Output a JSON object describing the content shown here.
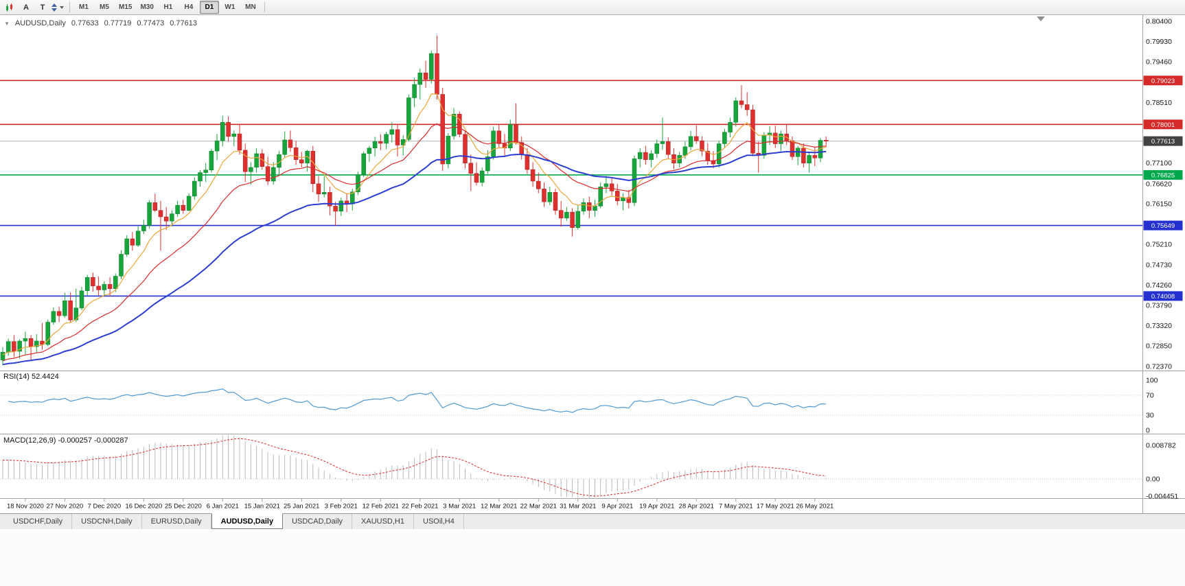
{
  "toolbar": {
    "a_label": "A",
    "t_label": "T",
    "timeframes": [
      "M1",
      "M5",
      "M15",
      "M30",
      "H1",
      "H4",
      "D1",
      "W1",
      "MN"
    ],
    "active_timeframe": "D1"
  },
  "chart": {
    "info_line": {
      "symbol_period": "AUDUSD,Daily",
      "open": "0.77633",
      "high": "0.77719",
      "low": "0.77473",
      "close": "0.77613"
    },
    "price_axis_ticks": [
      "0.80400",
      "0.79930",
      "0.79460",
      "0.78980",
      "0.78510",
      "0.78040",
      "0.77100",
      "0.76620",
      "0.76150",
      "0.75670",
      "0.75210",
      "0.74730",
      "0.74260",
      "0.73790",
      "0.73320",
      "0.72850",
      "0.72370"
    ],
    "current_price": {
      "value": 0.77613,
      "label": "0.77613",
      "line_color": "#b4b4b4",
      "box_color": "#424242"
    },
    "levels": [
      {
        "label": "0.79023",
        "value": 0.79023,
        "color": "#d42a2a"
      },
      {
        "label": "0.78001",
        "value": 0.78001,
        "color": "#d42a2a"
      },
      {
        "label": "0.76825",
        "value": 0.76825,
        "color": "#00a84d"
      },
      {
        "label": "0.75649",
        "value": 0.75649,
        "color": "#2430cf"
      },
      {
        "label": "0.74008",
        "value": 0.74008,
        "color": "#2430cf"
      }
    ],
    "colors": {
      "up": "#17a53b",
      "up_stroke": "#0c7c2b",
      "down": "#df3030",
      "down_stroke": "#a32020",
      "bg": "#ffffff",
      "axis_text": "#141414"
    }
  },
  "chart_data": {
    "type": "candlestick",
    "title": "AUDUSD Daily",
    "ylim": [
      0.7237,
      0.804
    ],
    "x_labels": [
      "18 Nov 2020",
      "27 Nov 2020",
      "7 Dec 2020",
      "16 Dec 2020",
      "25 Dec 2020",
      "6 Jan 2021",
      "15 Jan 2021",
      "25 Jan 2021",
      "3 Feb 2021",
      "12 Feb 2021",
      "22 Feb 2021",
      "3 Mar 2021",
      "12 Mar 2021",
      "22 Mar 2021",
      "31 Mar 2021",
      "9 Apr 2021",
      "19 Apr 2021",
      "28 Apr 2021",
      "7 May 2021",
      "17 May 2021",
      "26 May 2021"
    ],
    "label_every": 7,
    "label_start_index": 4,
    "candles": [
      [
        0.7252,
        0.7282,
        0.724,
        0.727
      ],
      [
        0.727,
        0.7302,
        0.7262,
        0.7295
      ],
      [
        0.7295,
        0.731,
        0.7258,
        0.7272
      ],
      [
        0.7272,
        0.73,
        0.7255,
        0.7296
      ],
      [
        0.7296,
        0.7318,
        0.7265,
        0.7302
      ],
      [
        0.7302,
        0.731,
        0.7252,
        0.7283
      ],
      [
        0.7283,
        0.7312,
        0.7268,
        0.7296
      ],
      [
        0.7296,
        0.7338,
        0.7276,
        0.7288
      ],
      [
        0.7288,
        0.7346,
        0.7284,
        0.734
      ],
      [
        0.734,
        0.7374,
        0.7334,
        0.7365
      ],
      [
        0.7365,
        0.7376,
        0.734,
        0.7355
      ],
      [
        0.7355,
        0.7408,
        0.735,
        0.739
      ],
      [
        0.739,
        0.7409,
        0.7339,
        0.7345
      ],
      [
        0.7345,
        0.7418,
        0.734,
        0.7373
      ],
      [
        0.7373,
        0.7422,
        0.7368,
        0.7413
      ],
      [
        0.7413,
        0.745,
        0.7402,
        0.7444
      ],
      [
        0.7444,
        0.7455,
        0.7411,
        0.7424
      ],
      [
        0.7424,
        0.7446,
        0.7402,
        0.7415
      ],
      [
        0.7415,
        0.7435,
        0.7401,
        0.7428
      ],
      [
        0.7428,
        0.7445,
        0.74,
        0.7418
      ],
      [
        0.7418,
        0.7453,
        0.741,
        0.7447
      ],
      [
        0.7447,
        0.7507,
        0.744,
        0.7498
      ],
      [
        0.7498,
        0.7542,
        0.7492,
        0.7534
      ],
      [
        0.7534,
        0.755,
        0.7506,
        0.7519
      ],
      [
        0.7519,
        0.7563,
        0.7515,
        0.7552
      ],
      [
        0.7552,
        0.7578,
        0.7545,
        0.7565
      ],
      [
        0.7565,
        0.7624,
        0.7558,
        0.7618
      ],
      [
        0.7618,
        0.7639,
        0.7596,
        0.76
      ],
      [
        0.76,
        0.7622,
        0.7506,
        0.7585
      ],
      [
        0.7585,
        0.7608,
        0.7555,
        0.7575
      ],
      [
        0.7575,
        0.76,
        0.7563,
        0.7592
      ],
      [
        0.7592,
        0.7622,
        0.7585,
        0.7612
      ],
      [
        0.7612,
        0.7625,
        0.7592,
        0.76
      ],
      [
        0.76,
        0.764,
        0.7598,
        0.7633
      ],
      [
        0.7633,
        0.7677,
        0.7625,
        0.7668
      ],
      [
        0.7668,
        0.7694,
        0.7655,
        0.7688
      ],
      [
        0.7688,
        0.771,
        0.7666,
        0.7694
      ],
      [
        0.7694,
        0.7743,
        0.7688,
        0.7738
      ],
      [
        0.7738,
        0.7778,
        0.7717,
        0.7762
      ],
      [
        0.7762,
        0.782,
        0.7749,
        0.7805
      ],
      [
        0.7805,
        0.7819,
        0.776,
        0.7772
      ],
      [
        0.7772,
        0.7786,
        0.7749,
        0.7778
      ],
      [
        0.7778,
        0.78,
        0.773,
        0.774
      ],
      [
        0.774,
        0.7755,
        0.7666,
        0.769
      ],
      [
        0.769,
        0.7712,
        0.766,
        0.77
      ],
      [
        0.77,
        0.7745,
        0.7688,
        0.7732
      ],
      [
        0.7732,
        0.7742,
        0.7695,
        0.7702
      ],
      [
        0.7702,
        0.7725,
        0.7659,
        0.7668
      ],
      [
        0.7668,
        0.7712,
        0.766,
        0.77
      ],
      [
        0.77,
        0.7738,
        0.7683,
        0.773
      ],
      [
        0.773,
        0.7784,
        0.7722,
        0.7764
      ],
      [
        0.7764,
        0.7786,
        0.7736,
        0.7746
      ],
      [
        0.7746,
        0.7762,
        0.7706,
        0.7718
      ],
      [
        0.7718,
        0.7736,
        0.77,
        0.771
      ],
      [
        0.771,
        0.7741,
        0.769,
        0.7738
      ],
      [
        0.7738,
        0.775,
        0.7642,
        0.7662
      ],
      [
        0.7662,
        0.768,
        0.762,
        0.7638
      ],
      [
        0.7638,
        0.768,
        0.763,
        0.7642
      ],
      [
        0.7642,
        0.7655,
        0.7588,
        0.761
      ],
      [
        0.761,
        0.762,
        0.7564,
        0.7598
      ],
      [
        0.7598,
        0.763,
        0.7587,
        0.7622
      ],
      [
        0.7622,
        0.764,
        0.7596,
        0.7615
      ],
      [
        0.7615,
        0.765,
        0.76,
        0.7643
      ],
      [
        0.7643,
        0.769,
        0.7636,
        0.7683
      ],
      [
        0.7683,
        0.7737,
        0.7678,
        0.7732
      ],
      [
        0.7732,
        0.775,
        0.7713,
        0.7745
      ],
      [
        0.7745,
        0.7771,
        0.7725,
        0.776
      ],
      [
        0.776,
        0.7777,
        0.774,
        0.7756
      ],
      [
        0.7756,
        0.7783,
        0.7742,
        0.7777
      ],
      [
        0.7777,
        0.7805,
        0.7758,
        0.7788
      ],
      [
        0.7788,
        0.78,
        0.7725,
        0.7752
      ],
      [
        0.7752,
        0.7775,
        0.7728,
        0.7765
      ],
      [
        0.7765,
        0.787,
        0.776,
        0.7862
      ],
      [
        0.7862,
        0.7908,
        0.784,
        0.7893
      ],
      [
        0.7893,
        0.793,
        0.7858,
        0.792
      ],
      [
        0.792,
        0.7948,
        0.7885,
        0.7905
      ],
      [
        0.7905,
        0.7972,
        0.7895,
        0.7965
      ],
      [
        0.7965,
        0.8007,
        0.7858,
        0.787
      ],
      [
        0.787,
        0.7885,
        0.7692,
        0.7708
      ],
      [
        0.7708,
        0.778,
        0.7698,
        0.7773
      ],
      [
        0.7773,
        0.7838,
        0.7765,
        0.7824
      ],
      [
        0.7824,
        0.783,
        0.777,
        0.7777
      ],
      [
        0.7777,
        0.7785,
        0.7698,
        0.771
      ],
      [
        0.771,
        0.773,
        0.7645,
        0.7686
      ],
      [
        0.7686,
        0.7712,
        0.7658,
        0.7665
      ],
      [
        0.7665,
        0.77,
        0.7656,
        0.7692
      ],
      [
        0.7692,
        0.774,
        0.7685,
        0.7725
      ],
      [
        0.7725,
        0.7795,
        0.7718,
        0.7785
      ],
      [
        0.7785,
        0.78,
        0.7745,
        0.7755
      ],
      [
        0.7755,
        0.7778,
        0.7725,
        0.7745
      ],
      [
        0.7745,
        0.7811,
        0.7738,
        0.78
      ],
      [
        0.78,
        0.7849,
        0.7753,
        0.7758
      ],
      [
        0.7758,
        0.7772,
        0.7718,
        0.773
      ],
      [
        0.773,
        0.7745,
        0.7685,
        0.7695
      ],
      [
        0.7695,
        0.7712,
        0.7655,
        0.7668
      ],
      [
        0.7668,
        0.7688,
        0.764,
        0.765
      ],
      [
        0.765,
        0.7665,
        0.7608,
        0.762
      ],
      [
        0.762,
        0.7655,
        0.7612,
        0.7642
      ],
      [
        0.7642,
        0.765,
        0.759,
        0.76
      ],
      [
        0.76,
        0.7622,
        0.7562,
        0.7582
      ],
      [
        0.7582,
        0.7608,
        0.7576,
        0.7596
      ],
      [
        0.7596,
        0.7605,
        0.7539,
        0.756
      ],
      [
        0.756,
        0.7612,
        0.7555,
        0.7598
      ],
      [
        0.7598,
        0.7628,
        0.759,
        0.7618
      ],
      [
        0.7618,
        0.7632,
        0.7582,
        0.76
      ],
      [
        0.76,
        0.7625,
        0.7585,
        0.761
      ],
      [
        0.761,
        0.7665,
        0.7605,
        0.7655
      ],
      [
        0.7655,
        0.768,
        0.764,
        0.7662
      ],
      [
        0.7662,
        0.7675,
        0.7633,
        0.7645
      ],
      [
        0.7645,
        0.7662,
        0.7612,
        0.7622
      ],
      [
        0.7622,
        0.764,
        0.76,
        0.763
      ],
      [
        0.763,
        0.7648,
        0.7605,
        0.7618
      ],
      [
        0.7618,
        0.7728,
        0.761,
        0.772
      ],
      [
        0.772,
        0.7745,
        0.77,
        0.7735
      ],
      [
        0.7735,
        0.775,
        0.7706,
        0.7718
      ],
      [
        0.7718,
        0.774,
        0.77,
        0.7732
      ],
      [
        0.7732,
        0.7765,
        0.7722,
        0.7755
      ],
      [
        0.7755,
        0.7816,
        0.7741,
        0.776
      ],
      [
        0.776,
        0.777,
        0.772,
        0.773
      ],
      [
        0.773,
        0.7745,
        0.7696,
        0.771
      ],
      [
        0.771,
        0.7736,
        0.77,
        0.7728
      ],
      [
        0.7728,
        0.776,
        0.772,
        0.7748
      ],
      [
        0.7748,
        0.7785,
        0.774,
        0.7772
      ],
      [
        0.7772,
        0.7798,
        0.7755,
        0.7762
      ],
      [
        0.7762,
        0.7772,
        0.7726,
        0.7738
      ],
      [
        0.7738,
        0.7756,
        0.7706,
        0.7716
      ],
      [
        0.7716,
        0.7738,
        0.7698,
        0.7708
      ],
      [
        0.7708,
        0.7762,
        0.77,
        0.7755
      ],
      [
        0.7755,
        0.779,
        0.7745,
        0.7782
      ],
      [
        0.7782,
        0.7816,
        0.777,
        0.7805
      ],
      [
        0.7805,
        0.7863,
        0.7795,
        0.7855
      ],
      [
        0.7855,
        0.7891,
        0.7838,
        0.7846
      ],
      [
        0.7846,
        0.7875,
        0.782,
        0.7834
      ],
      [
        0.7834,
        0.7845,
        0.7726,
        0.7733
      ],
      [
        0.7733,
        0.776,
        0.7688,
        0.7728
      ],
      [
        0.7728,
        0.7782,
        0.772,
        0.7775
      ],
      [
        0.7775,
        0.7796,
        0.7752,
        0.778
      ],
      [
        0.778,
        0.7797,
        0.7745,
        0.7755
      ],
      [
        0.7755,
        0.7785,
        0.7738,
        0.7778
      ],
      [
        0.7778,
        0.78,
        0.7752,
        0.7762
      ],
      [
        0.7762,
        0.7772,
        0.7717,
        0.7725
      ],
      [
        0.7725,
        0.775,
        0.7705,
        0.7745
      ],
      [
        0.7745,
        0.7756,
        0.77,
        0.771
      ],
      [
        0.771,
        0.7735,
        0.7688,
        0.7728
      ],
      [
        0.7728,
        0.7748,
        0.7703,
        0.7722
      ],
      [
        0.7722,
        0.7768,
        0.7712,
        0.7763
      ],
      [
        0.77633,
        0.77719,
        0.77473,
        0.77613
      ]
    ],
    "overlays": [
      {
        "name": "ema-fast",
        "period": 8,
        "seed": 0.7262,
        "color": "#eba63b",
        "width": 1.2
      },
      {
        "name": "ema-mid",
        "period": 20,
        "seed": 0.7248,
        "color": "#d92b2b",
        "width": 1.2
      },
      {
        "name": "ema-slow",
        "period": 45,
        "seed": 0.724,
        "color": "#2c3ed0",
        "width": 2
      }
    ],
    "indicators": {
      "rsi": {
        "label": "RSI(14) 52.4424",
        "period": 14,
        "value": 52.4424,
        "levels": [
          30,
          70
        ],
        "axis": [
          "100",
          "70",
          "30",
          "0"
        ],
        "color": "#4f9ad2"
      },
      "macd": {
        "label": "MACD(12,26,9) -0.000257 -0.000287",
        "fast": 12,
        "slow": 26,
        "signal": 9,
        "values": [
          -0.000257,
          -0.000287
        ],
        "axis": [
          "0.008782",
          "0.00",
          "-0.004451"
        ],
        "histogram_color": "#b8b8b8",
        "signal_color": "#d92b2b"
      }
    }
  },
  "tabs": {
    "items": [
      "USDCHF,Daily",
      "USDCNH,Daily",
      "EURUSD,Daily",
      "AUDUSD,Daily",
      "USDCAD,Daily",
      "XAUUSD,H1",
      "USOil,H4"
    ],
    "active": "AUDUSD,Daily"
  }
}
